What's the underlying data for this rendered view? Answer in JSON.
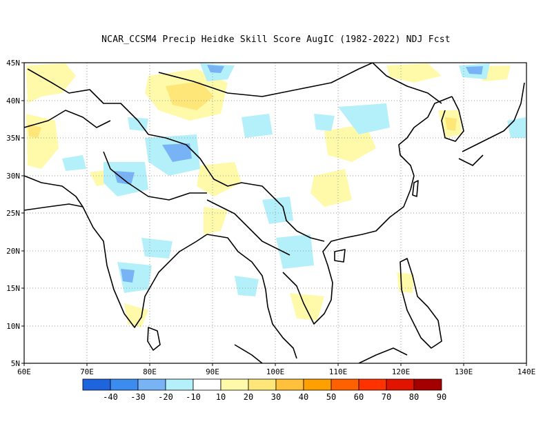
{
  "title": "NCAR_CCSM4 Precip Heidke Skill Score AugIC (1982-2022) NDJ Fcst",
  "lon_ticks": [
    "60E",
    "70E",
    "80E",
    "90E",
    "100E",
    "110E",
    "120E",
    "130E",
    "140E"
  ],
  "lat_ticks": [
    "5N",
    "10N",
    "15N",
    "20N",
    "25N",
    "30N",
    "35N",
    "40N",
    "45N"
  ],
  "colorbar": {
    "labels": [
      "-40",
      "-30",
      "-20",
      "-10",
      "10",
      "20",
      "30",
      "40",
      "50",
      "60",
      "70",
      "80",
      "90"
    ],
    "colors": [
      "#1e64dc",
      "#3c8cf0",
      "#78b4f5",
      "#b4f0fa",
      "#ffffff",
      "#fffaaa",
      "#ffe678",
      "#ffc03c",
      "#ffa000",
      "#ff6000",
      "#ff3200",
      "#e11400",
      "#a50000"
    ]
  },
  "map": {
    "lon_range": [
      60,
      140
    ],
    "lat_range": [
      5,
      45
    ],
    "grid": "dotted"
  }
}
